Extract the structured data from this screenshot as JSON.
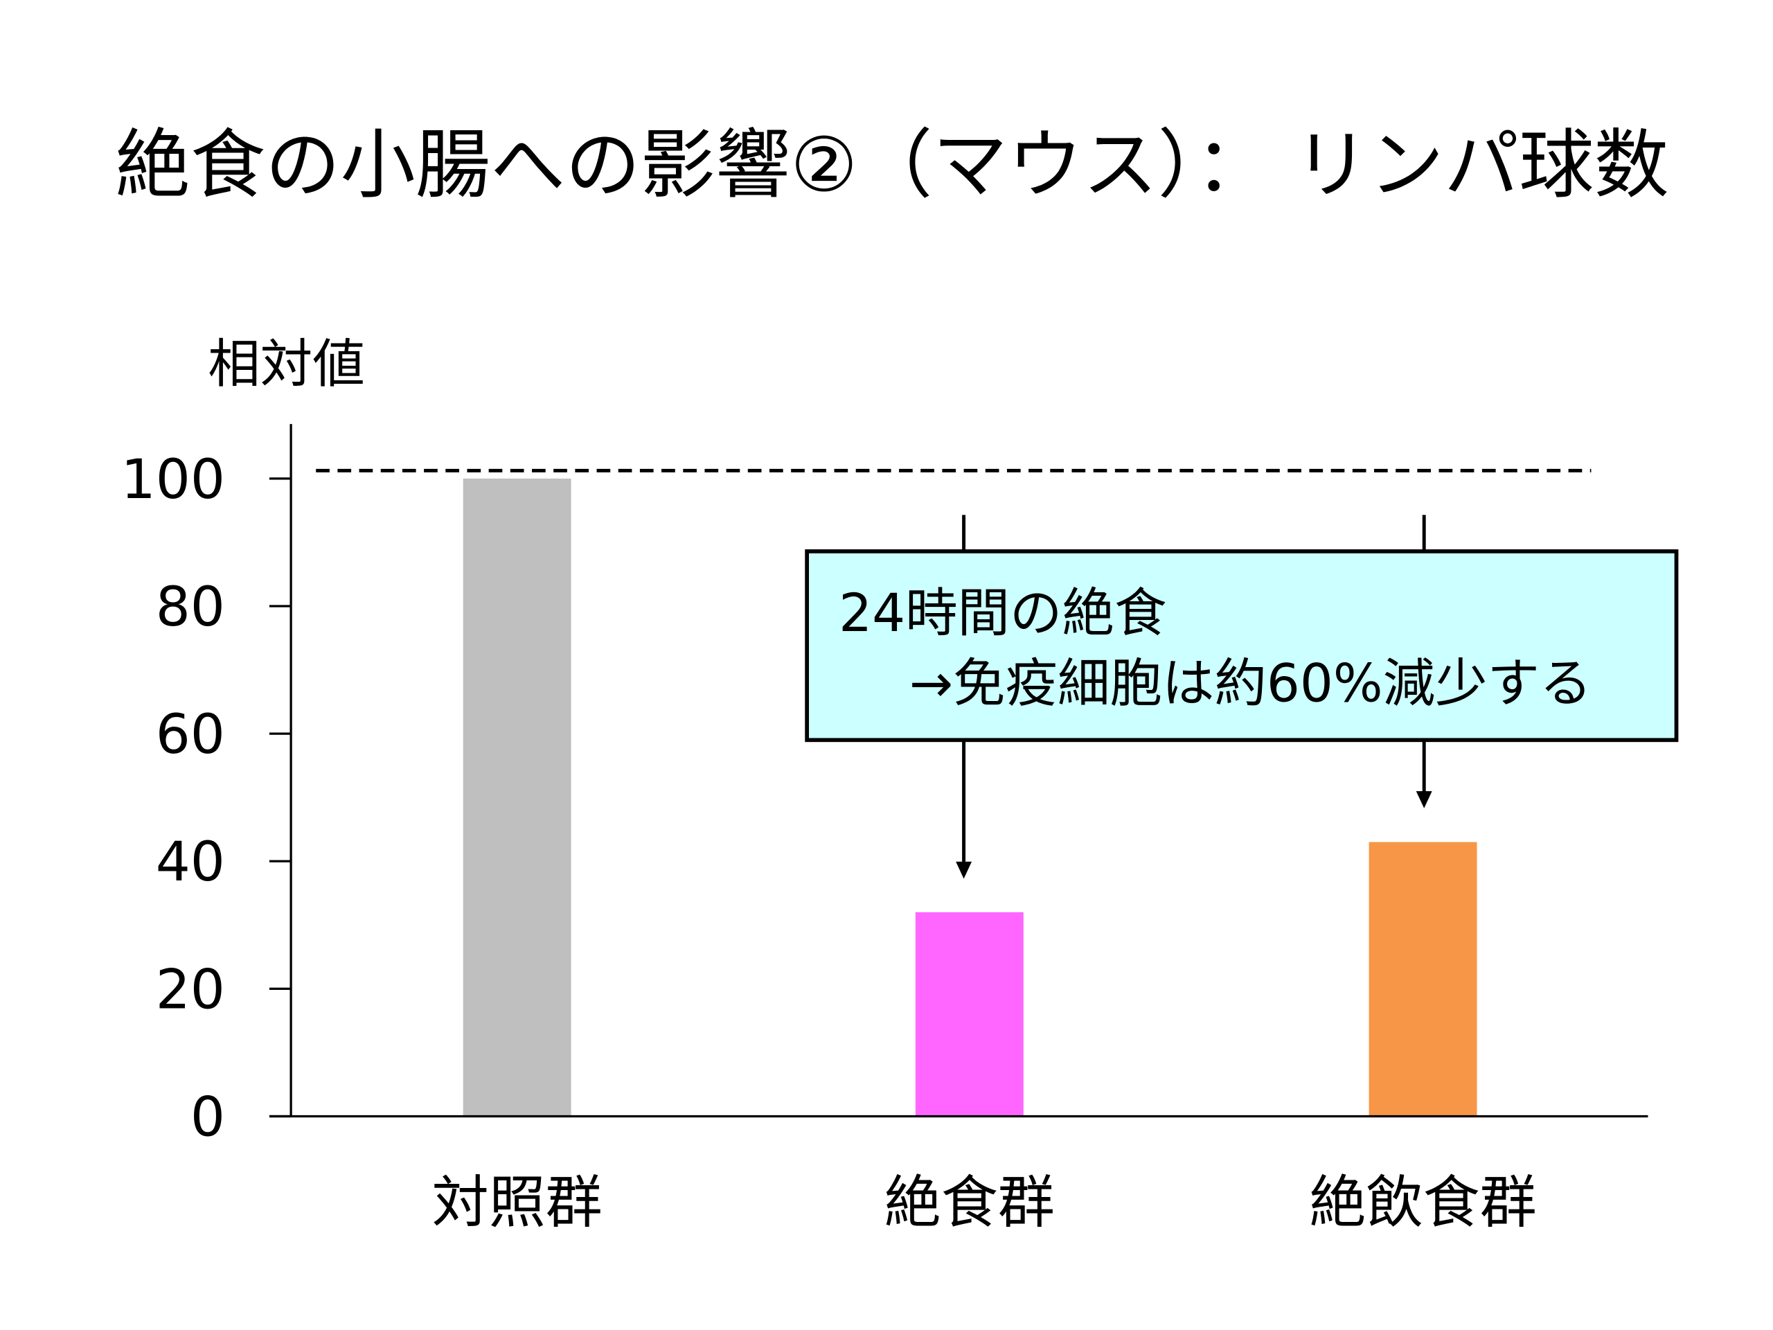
{
  "chart_data": {
    "type": "bar",
    "title": "絶食の小腸への影響②（マウス）： リンパ球数",
    "ylabel": "相対値",
    "xlabel": "",
    "categories": [
      "対照群",
      "絶食群",
      "絶飲食群"
    ],
    "values": [
      100,
      32,
      43
    ],
    "colors": [
      "#bfbfbf",
      "#ff66ff",
      "#f79646"
    ],
    "ylim": [
      0,
      100
    ],
    "yticks": [
      0,
      20,
      40,
      60,
      80,
      100
    ],
    "ytick_labels": [
      "0",
      "20",
      "40",
      "60",
      "80",
      "100"
    ],
    "reference_line": {
      "value": 100,
      "style": "dashed"
    },
    "grid": false,
    "annotation": {
      "line1": "24時間の絶食",
      "line2": "→免疫細胞は約60%減少する",
      "background": "#ccffff",
      "targets": [
        "絶食群",
        "絶飲食群"
      ]
    }
  }
}
